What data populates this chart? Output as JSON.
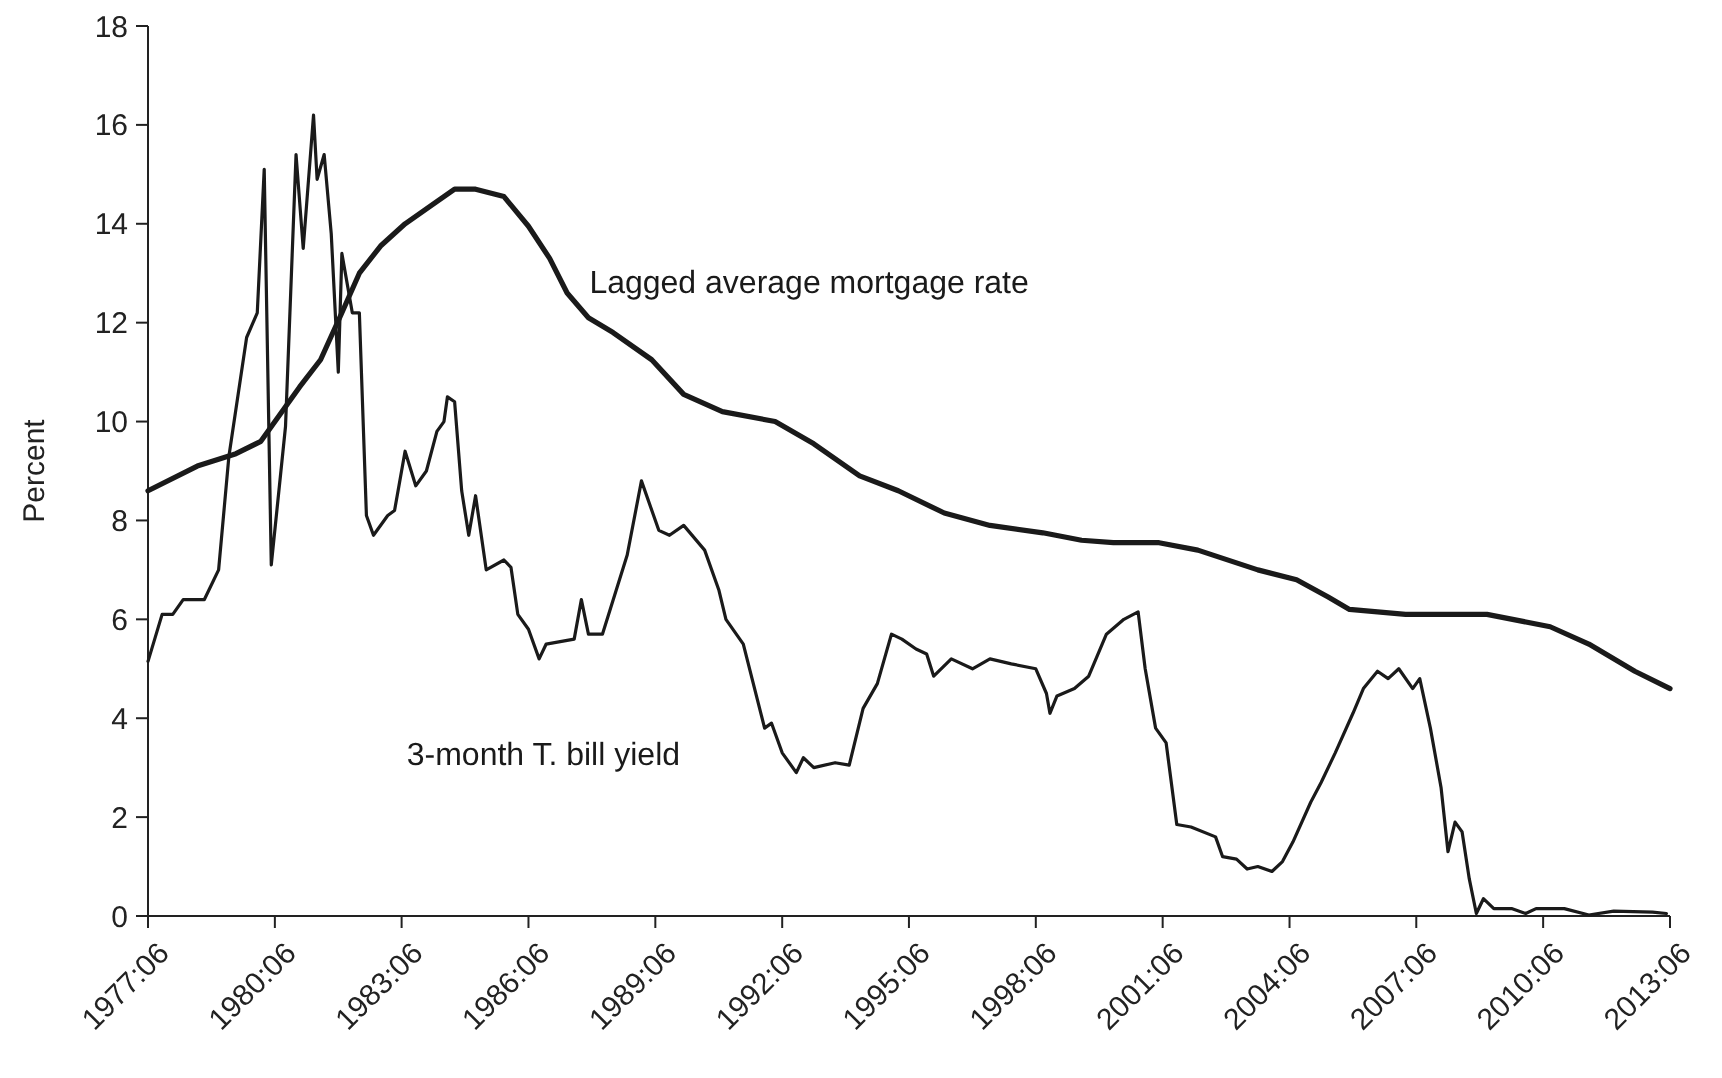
{
  "chart_data": {
    "type": "line",
    "ylabel": "Percent",
    "grid": false,
    "marker": "none",
    "line_style": "solid",
    "xlim": [
      "1977-06",
      "2013-06"
    ],
    "ylim": [
      0,
      18
    ],
    "yticks": [
      0,
      2,
      4,
      6,
      8,
      10,
      12,
      14,
      16,
      18
    ],
    "xticks": [
      {
        "value": "1977-06",
        "label": "1977:06"
      },
      {
        "value": "1980-06",
        "label": "1980:06"
      },
      {
        "value": "1983-06",
        "label": "1983:06"
      },
      {
        "value": "1986-06",
        "label": "1986:06"
      },
      {
        "value": "1989-06",
        "label": "1989:06"
      },
      {
        "value": "1992-06",
        "label": "1992:06"
      },
      {
        "value": "1995-06",
        "label": "1995:06"
      },
      {
        "value": "1998-06",
        "label": "1998:06"
      },
      {
        "value": "2001-06",
        "label": "2001:06"
      },
      {
        "value": "2004-06",
        "label": "2004:06"
      },
      {
        "value": "2007-06",
        "label": "2007:06"
      },
      {
        "value": "2010-06",
        "label": "2010:06"
      },
      {
        "value": "2013-06",
        "label": "2013:06"
      }
    ],
    "series": [
      {
        "name": "Lagged average mortgage rate",
        "color": "#1a1a1a",
        "x": [
          "1977-06",
          "1978-08",
          "1979-07",
          "1980-02",
          "1980-08",
          "1981-01",
          "1981-07",
          "1982-01",
          "1982-06",
          "1982-12",
          "1983-07",
          "1984-02",
          "1984-09",
          "1985-03",
          "1985-11",
          "1986-06",
          "1986-12",
          "1987-05",
          "1987-11",
          "1988-06",
          "1989-05",
          "1990-02",
          "1991-01",
          "1992-04",
          "1993-03",
          "1994-04",
          "1995-03",
          "1996-04",
          "1997-05",
          "1998-08",
          "1999-07",
          "2000-04",
          "2001-05",
          "2002-04",
          "2003-09",
          "2004-08",
          "2005-05",
          "2005-11",
          "2007-03",
          "2008-04",
          "2009-02",
          "2010-08",
          "2011-07",
          "2012-08",
          "2013-06"
        ],
        "values": [
          8.6,
          9.1,
          9.35,
          9.6,
          10.2,
          10.7,
          11.25,
          12.2,
          13.0,
          13.55,
          14.0,
          14.35,
          14.7,
          14.7,
          14.55,
          13.95,
          13.3,
          12.6,
          12.1,
          11.8,
          11.25,
          10.55,
          10.2,
          10.0,
          9.55,
          8.9,
          8.6,
          8.15,
          7.9,
          7.75,
          7.6,
          7.55,
          7.55,
          7.4,
          7.0,
          6.8,
          6.45,
          6.2,
          6.1,
          6.1,
          6.1,
          5.85,
          5.5,
          4.95,
          4.6
        ]
      },
      {
        "name": "3-month T. bill yield",
        "color": "#1a1a1a",
        "x": [
          "1977-06",
          "1977-10",
          "1978-01",
          "1978-04",
          "1978-10",
          "1979-02",
          "1979-05",
          "1979-10",
          "1980-01",
          "1980-03",
          "1980-05",
          "1980-09",
          "1980-12",
          "1981-02",
          "1981-05",
          "1981-06",
          "1981-08",
          "1981-10",
          "1981-12",
          "1982-01",
          "1982-04",
          "1982-06",
          "1982-08",
          "1982-10",
          "1983-02",
          "1983-04",
          "1983-07",
          "1983-10",
          "1984-01",
          "1984-04",
          "1984-06",
          "1984-07",
          "1984-09",
          "1984-11",
          "1985-01",
          "1985-03",
          "1985-06",
          "1985-11",
          "1986-01",
          "1986-03",
          "1986-06",
          "1986-09",
          "1986-11",
          "1987-07",
          "1987-09",
          "1987-11",
          "1988-03",
          "1988-10",
          "1989-02",
          "1989-07",
          "1989-10",
          "1990-02",
          "1990-08",
          "1990-12",
          "1991-02",
          "1991-07",
          "1992-01",
          "1992-03",
          "1992-06",
          "1992-10",
          "1992-12",
          "1993-03",
          "1993-09",
          "1994-01",
          "1994-05",
          "1994-09",
          "1995-01",
          "1995-04",
          "1995-08",
          "1995-11",
          "1996-01",
          "1996-06",
          "1996-12",
          "1997-05",
          "1997-11",
          "1998-06",
          "1998-09",
          "1998-10",
          "1998-12",
          "1999-05",
          "1999-09",
          "2000-02",
          "2000-07",
          "2000-11",
          "2001-01",
          "2001-04",
          "2001-07",
          "2001-10",
          "2002-02",
          "2002-09",
          "2002-11",
          "2003-03",
          "2003-06",
          "2003-09",
          "2004-01",
          "2004-04",
          "2004-07",
          "2004-12",
          "2005-03",
          "2005-07",
          "2005-12",
          "2006-03",
          "2006-07",
          "2006-10",
          "2007-01",
          "2007-05",
          "2007-07",
          "2007-10",
          "2008-01",
          "2008-03",
          "2008-05",
          "2008-07",
          "2008-09",
          "2008-11",
          "2009-01",
          "2009-04",
          "2009-09",
          "2010-01",
          "2010-04",
          "2010-12",
          "2011-07",
          "2012-02",
          "2013-01",
          "2013-05"
        ],
        "values": [
          5.15,
          6.1,
          6.1,
          6.4,
          6.4,
          7.0,
          9.3,
          11.7,
          12.2,
          15.1,
          7.1,
          9.9,
          15.4,
          13.5,
          16.2,
          14.9,
          15.4,
          13.8,
          11.0,
          13.4,
          12.2,
          12.2,
          8.1,
          7.7,
          8.1,
          8.2,
          9.4,
          8.7,
          9.0,
          9.8,
          10.0,
          10.5,
          10.4,
          8.6,
          7.7,
          8.5,
          7.0,
          7.2,
          7.05,
          6.1,
          5.8,
          5.2,
          5.5,
          5.6,
          6.4,
          5.7,
          5.7,
          7.3,
          8.8,
          7.8,
          7.7,
          7.9,
          7.4,
          6.6,
          6.0,
          5.5,
          3.8,
          3.9,
          3.3,
          2.9,
          3.2,
          3.0,
          3.1,
          3.05,
          4.2,
          4.7,
          5.7,
          5.6,
          5.4,
          5.3,
          4.85,
          5.2,
          5.0,
          5.2,
          5.1,
          5.0,
          4.5,
          4.1,
          4.45,
          4.6,
          4.85,
          5.7,
          6.0,
          6.15,
          5.0,
          3.8,
          3.5,
          1.85,
          1.8,
          1.6,
          1.2,
          1.15,
          0.95,
          1.0,
          0.9,
          1.1,
          1.5,
          2.3,
          2.7,
          3.3,
          4.1,
          4.6,
          4.95,
          4.8,
          5.0,
          4.6,
          4.8,
          3.8,
          2.6,
          1.3,
          1.9,
          1.7,
          0.75,
          0.05,
          0.35,
          0.15,
          0.15,
          0.05,
          0.15,
          0.15,
          0.02,
          0.1,
          0.08,
          0.05
        ]
      }
    ]
  }
}
